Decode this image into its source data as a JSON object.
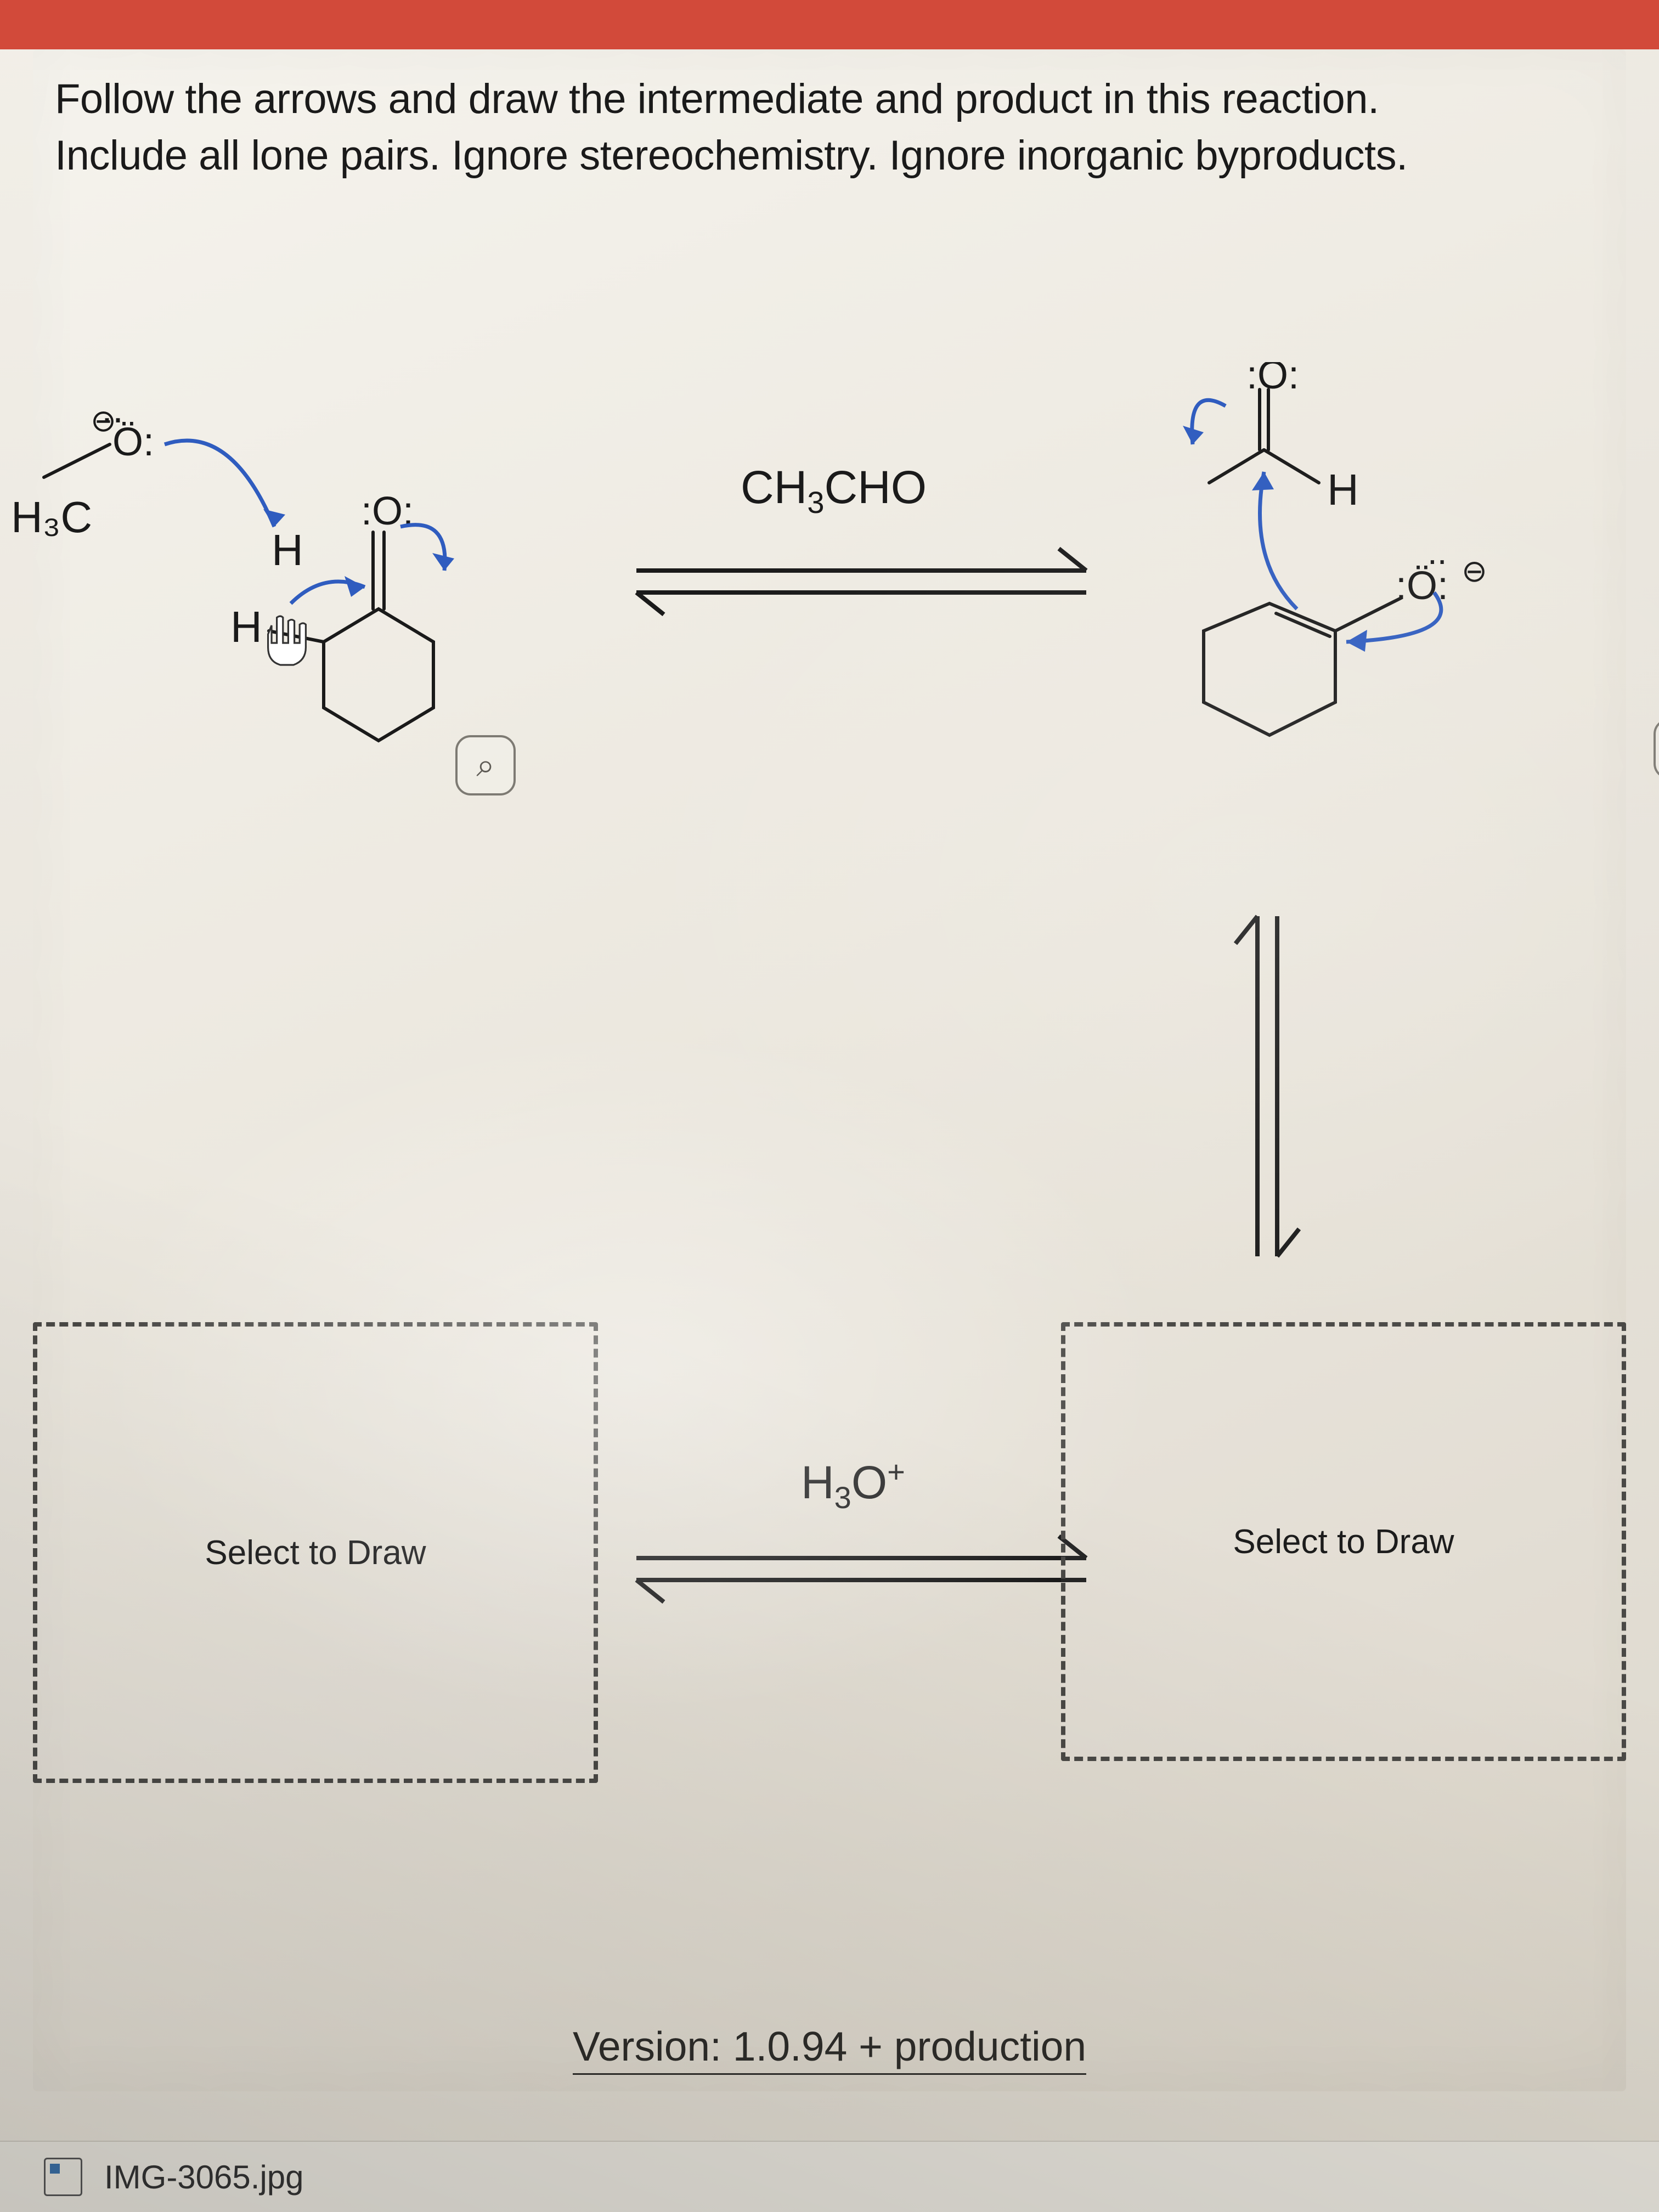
{
  "question": {
    "text": "Follow the arrows and draw the intermediate and product in this reaction.\nInclude all lone pairs. Ignore stereochemistry. Ignore inorganic byproducts."
  },
  "reagents": {
    "top": "CH3CHO",
    "top_html": "CH<sub>3</sub>CHO",
    "acid": "H3O+",
    "acid_html": "H<sub>3</sub>O<sup>+</sup>"
  },
  "scheme_left": {
    "methoxide_label": "H₃C",
    "O_lone": ":Ö:",
    "O2_lone": ":O:",
    "charge": "⊖",
    "H_labels": [
      "H",
      "H"
    ],
    "cursor": true,
    "curved_arrow_color": "#2f5cbf",
    "line_width": 6
  },
  "scheme_right": {
    "carbonyl_O": ":O:",
    "alkoxide_O": ":Ö:",
    "charge": "⊖",
    "H_label": "H",
    "curved_arrow_color": "#2f5cbf",
    "line_width": 6
  },
  "draw_boxes": {
    "left_label": "Select to Draw",
    "right_label": "Select to Draw",
    "border_color": "#4a4946"
  },
  "zoom_icon": "⌕",
  "version": "Version: 1.0.94 + production",
  "taskbar": {
    "file": "IMG-3065.jpg"
  },
  "colors": {
    "topbar": "#d24a3a",
    "arrow": "#1a1a1a",
    "text": "#1a1a1a",
    "curved_arrow": "#2f5cbf"
  },
  "arrows": {
    "line_width": 7,
    "head_len": 50,
    "head_w": 24
  }
}
